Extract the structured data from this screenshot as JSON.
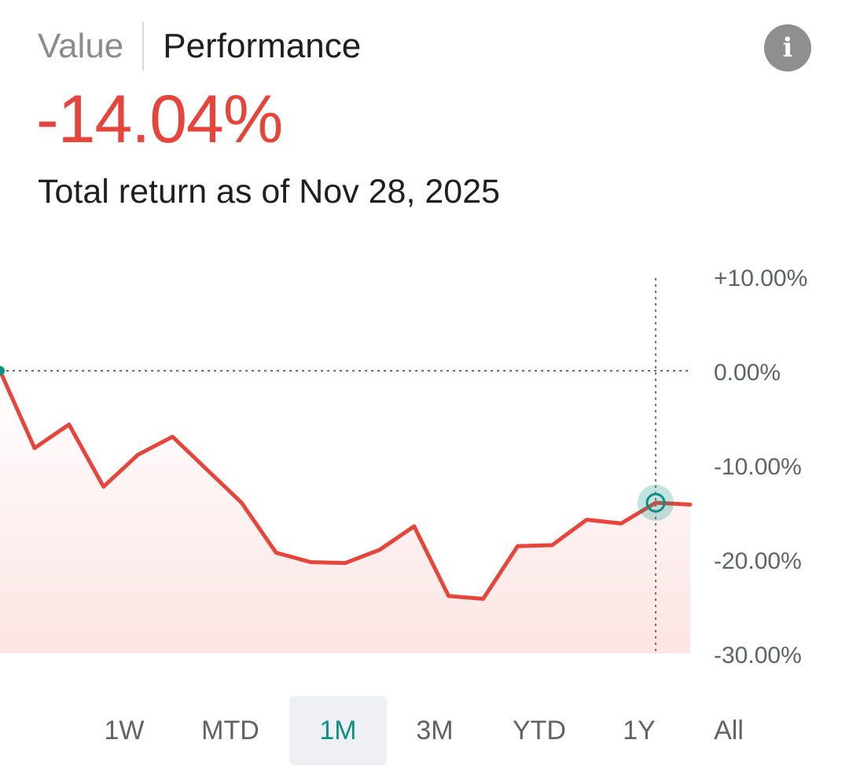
{
  "header": {
    "tabs": [
      {
        "label": "Value",
        "active": false
      },
      {
        "label": "Performance",
        "active": true
      }
    ],
    "info_icon": "info-icon"
  },
  "summary": {
    "value": "-14.04%",
    "subtitle": "Total return as of Nov 28, 2025"
  },
  "colors": {
    "negative": "#e5453a",
    "accent": "#0f8f83",
    "muted_text": "#5f6368"
  },
  "chart_data": {
    "type": "line",
    "series": [
      {
        "values": [
          0.0,
          -8.2,
          -5.7,
          -12.3,
          -8.9,
          -7.0,
          -10.5,
          -14.0,
          -19.3,
          -20.3,
          -20.4,
          -19.0,
          -16.5,
          -23.9,
          -24.2,
          -18.6,
          -18.5,
          -15.8,
          -16.2,
          -14.0,
          -14.2
        ]
      }
    ],
    "y_tick_labels": [
      "+10.00%",
      "0.00%",
      "-10.00%",
      "-20.00%",
      "-30.00%"
    ],
    "y_ticks": [
      10,
      0,
      -10,
      -20,
      -30
    ],
    "ylim": [
      -30,
      10
    ],
    "reference_line": 0,
    "highlight_index": 19,
    "grid": false
  },
  "ranges": {
    "items": [
      "1W",
      "MTD",
      "1M",
      "3M",
      "YTD",
      "1Y",
      "All"
    ],
    "active": "1M"
  }
}
